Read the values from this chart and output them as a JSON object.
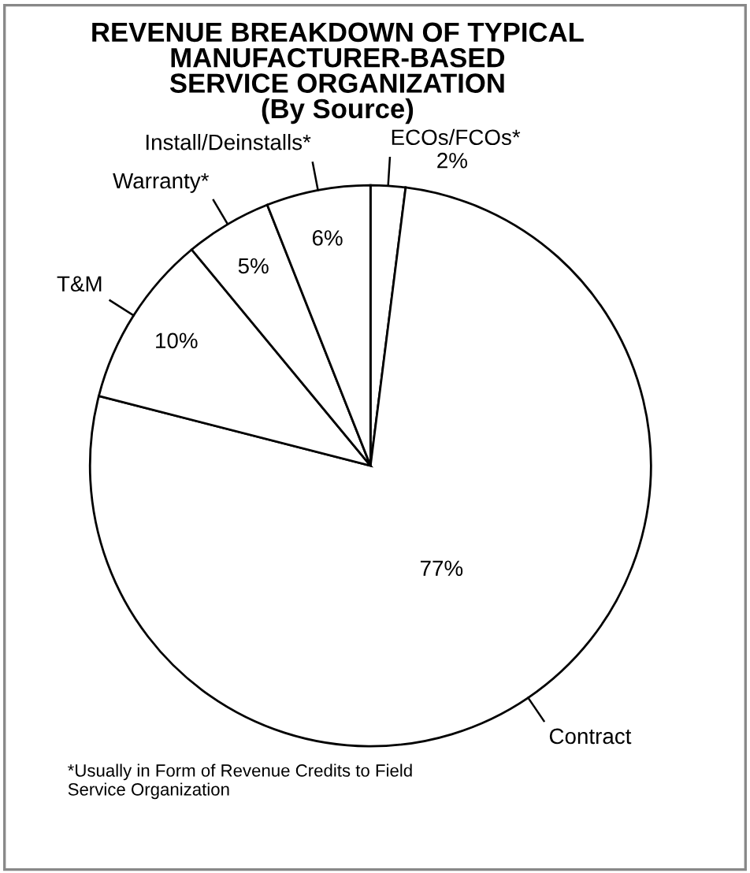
{
  "chart_data": {
    "type": "pie",
    "title": "REVENUE BREAKDOWN OF TYPICAL\nMANUFACTURER-BASED\nSERVICE ORGANIZATION\n(By Source)",
    "categories": [
      "ECOs/FCOs*",
      "Contract",
      "T&M",
      "Warranty*",
      "Install/Deinstalls*"
    ],
    "values": [
      2,
      77,
      10,
      5,
      6
    ],
    "colors": [
      "#ffffff",
      "#ffffff",
      "#ffffff",
      "#ffffff",
      "#ffffff"
    ],
    "value_labels": [
      "2%",
      "77%",
      "10%",
      "5%",
      "6%"
    ],
    "annotations": [
      "*Usually in Form of Revenue Credits to Field\nService Organization"
    ],
    "legend": false
  }
}
